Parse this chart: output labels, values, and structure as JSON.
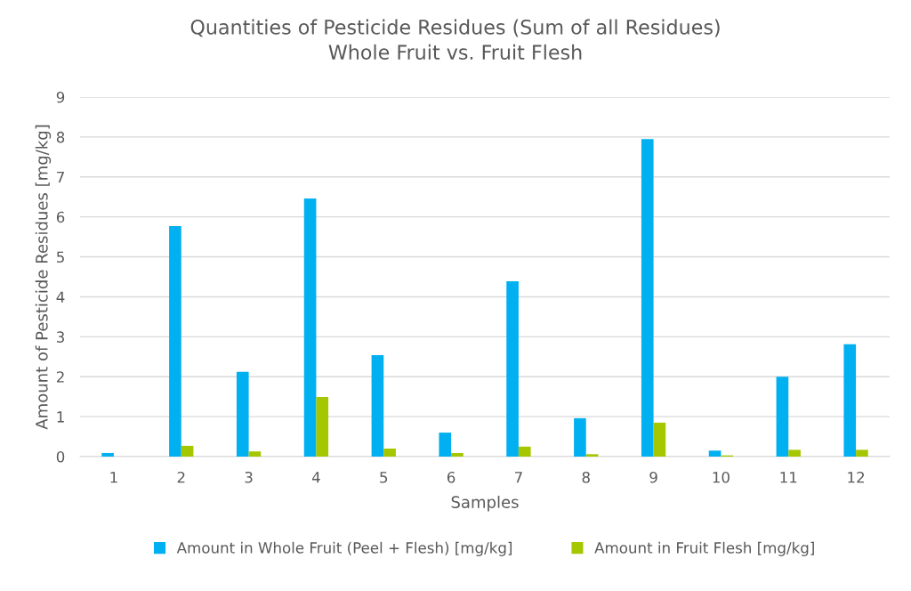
{
  "chart_data": {
    "type": "bar",
    "title": "Quantities of Pesticide Residues (Sum of all Residues)\nWhole Fruit vs. Fruit Flesh",
    "xlabel": "Samples",
    "ylabel": "Amount of Pesticide Residues [mg/kg]",
    "categories": [
      "1",
      "2",
      "3",
      "4",
      "5",
      "6",
      "7",
      "8",
      "9",
      "10",
      "11",
      "12"
    ],
    "series": [
      {
        "name": "Amount in Whole Fruit (Peel + Flesh) [mg/kg]",
        "color": "#00b0f0",
        "values": [
          0.09,
          5.77,
          2.12,
          6.46,
          2.54,
          0.6,
          4.39,
          0.96,
          7.95,
          0.15,
          2.0,
          2.81
        ]
      },
      {
        "name": "Amount in Fruit Flesh [mg/kg]",
        "color": "#a5c700",
        "values": [
          0.0,
          0.27,
          0.13,
          1.49,
          0.2,
          0.09,
          0.25,
          0.06,
          0.85,
          0.03,
          0.17,
          0.17
        ]
      }
    ],
    "ylim": [
      0,
      9
    ],
    "yticks": [
      0,
      1,
      2,
      3,
      4,
      5,
      6,
      7,
      8,
      9
    ],
    "grid": "y",
    "legend": "bottom"
  }
}
